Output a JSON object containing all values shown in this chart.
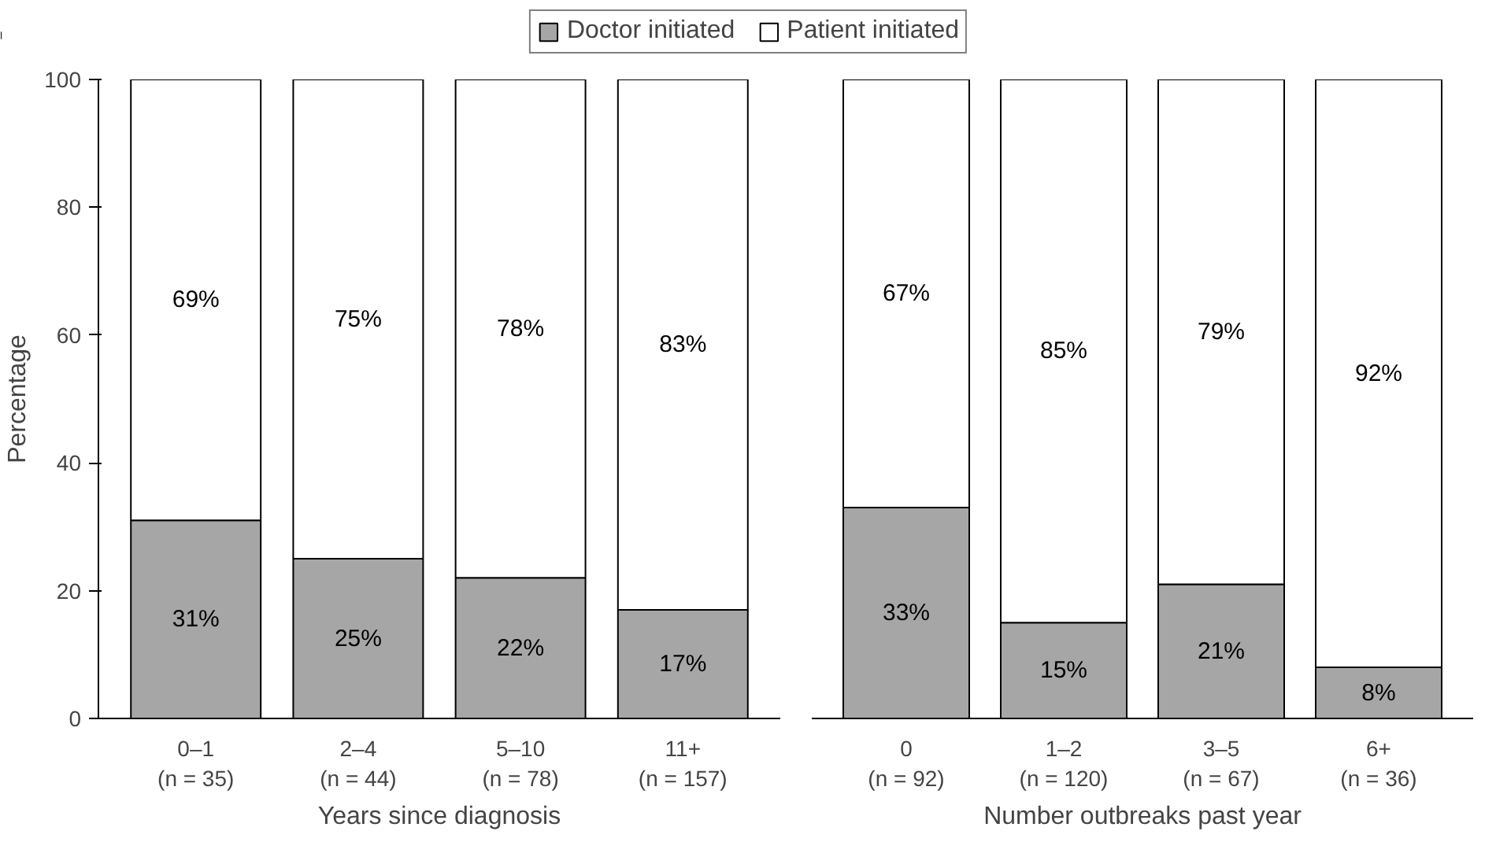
{
  "chart_data": [
    {
      "type": "bar",
      "stacked": true,
      "xlabel": "Years since diagnosis",
      "ylabel": "Percentage",
      "categories": [
        "0–1\n(n = 35)",
        "2–4\n(n = 44)",
        "5–10\n(n = 78)",
        "11+\n(n = 157)"
      ],
      "ylim": [
        0,
        100
      ],
      "yticks": [
        0,
        20,
        40,
        60,
        80,
        100
      ],
      "grid": false,
      "legend": "top",
      "series": [
        {
          "name": "Doctor initiated",
          "color": "#a6a6a6",
          "values": [
            31,
            25,
            22,
            17
          ],
          "value_labels": [
            "31%",
            "25%",
            "22%",
            "17%"
          ]
        },
        {
          "name": "Patient initiated",
          "color": "#ffffff",
          "values": [
            69,
            75,
            78,
            83
          ],
          "value_labels": [
            "69%",
            "75%",
            "78%",
            "83%"
          ]
        }
      ]
    },
    {
      "type": "bar",
      "stacked": true,
      "xlabel": "Number outbreaks past year",
      "categories": [
        "0\n(n = 92)",
        "1–2\n(n = 120)",
        "3–5\n(n = 67)",
        "6+\n(n = 36)"
      ],
      "ylim": [
        0,
        100
      ],
      "yticks": [
        0,
        20,
        40,
        60,
        80,
        100
      ],
      "grid": false,
      "tick_labels": "x",
      "series": [
        {
          "color": "#a6a6a6",
          "values": [
            33,
            15,
            21,
            8
          ],
          "value_labels": [
            "33%",
            "15%",
            "21%",
            "8%"
          ]
        },
        {
          "color": "#ffffff",
          "values": [
            67,
            85,
            79,
            92
          ],
          "value_labels": [
            "67%",
            "85%",
            "79%",
            "92%"
          ]
        }
      ]
    }
  ]
}
